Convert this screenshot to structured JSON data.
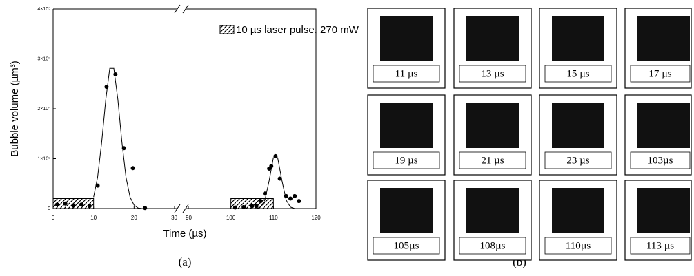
{
  "chart_data": {
    "type": "scatter",
    "y_label": "Bubble volume (µm³)",
    "x_label": "Time (µs)",
    "legend": "10 µs laser pulse, 270 mW",
    "caption": "(a)",
    "color": "#000000",
    "xlim": [
      0,
      120
    ],
    "xbreak": [
      30,
      90
    ],
    "xticks": [
      0,
      10,
      20,
      30,
      90,
      100,
      110,
      120
    ],
    "ylim": [
      0,
      400000
    ],
    "yticks": [
      0,
      {
        "value": 100000,
        "label": "1×10⁵"
      },
      {
        "value": 200000,
        "label": "2×10⁵"
      },
      {
        "value": 300000,
        "label": "3×10⁵"
      },
      {
        "value": 400000,
        "label": "4×10⁵"
      }
    ],
    "pulses": [
      {
        "start": 0,
        "end": 10,
        "height": 20000
      },
      {
        "start": 100,
        "end": 110,
        "height": 20000
      }
    ],
    "points": {
      "x": [
        1,
        3,
        5,
        7,
        9,
        11,
        13.2,
        15.4,
        17.5,
        19.7,
        22.7,
        101,
        103,
        105,
        106,
        107,
        108,
        109,
        109.5,
        110.5,
        111.5,
        113,
        114,
        115,
        116
      ],
      "values": [
        8000,
        10000,
        6000,
        8000,
        5000,
        46000,
        244000,
        269000,
        121000,
        81000,
        1000,
        2000,
        3000,
        5000,
        5000,
        15000,
        30000,
        80000,
        85000,
        105000,
        60000,
        25000,
        20000,
        25000,
        15000
      ]
    },
    "fits": [
      {
        "x": [
          10,
          11,
          12,
          13,
          14,
          15,
          16,
          17,
          18,
          19,
          20,
          21,
          22
        ],
        "values": [
          23000,
          63000,
          133000,
          218000,
          281000,
          281000,
          218000,
          133000,
          63000,
          23000,
          7000,
          1000,
          0
        ]
      },
      {
        "x": [
          106,
          107,
          108,
          109,
          110,
          111,
          112,
          113,
          114,
          115,
          116
        ],
        "values": [
          0,
          3000,
          17000,
          56000,
          102000,
          102000,
          56000,
          17000,
          3000,
          0,
          0
        ]
      }
    ]
  },
  "panel_b": {
    "caption": "(b)",
    "frames": [
      "11 µs",
      "13 µs",
      "15 µs",
      "17 µs",
      "19 µs",
      "21 µs",
      "23 µs",
      "103µs",
      "105µs",
      "108µs",
      "110µs",
      "113 µs"
    ]
  }
}
